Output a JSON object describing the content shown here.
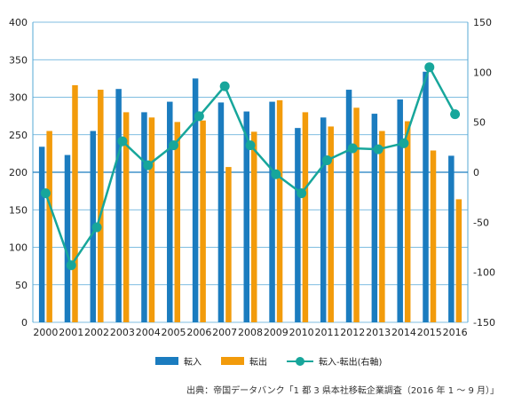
{
  "chart_data": {
    "type": "bar",
    "categories": [
      "2000",
      "2001",
      "2002",
      "2003",
      "2004",
      "2005",
      "2006",
      "2007",
      "2008",
      "2009",
      "2010",
      "2011",
      "2012",
      "2013",
      "2014",
      "2015",
      "2016"
    ],
    "series": [
      {
        "name": "転入",
        "type": "bar",
        "axis": "left",
        "values": [
          234,
          223,
          255,
          311,
          280,
          294,
          325,
          293,
          281,
          294,
          259,
          273,
          310,
          278,
          297,
          334,
          222
        ]
      },
      {
        "name": "転出",
        "type": "bar",
        "axis": "left",
        "values": [
          255,
          316,
          310,
          280,
          273,
          267,
          269,
          207,
          254,
          296,
          280,
          261,
          286,
          255,
          268,
          229,
          164
        ]
      },
      {
        "name": "転入-転出(右軸)",
        "type": "line",
        "axis": "right",
        "values": [
          -21,
          -93,
          -55,
          31,
          7,
          27,
          56,
          86,
          27,
          -2,
          -21,
          12,
          24,
          23,
          29,
          105,
          58
        ]
      }
    ],
    "y_left": {
      "min": 0,
      "max": 400,
      "ticks": [
        0,
        50,
        100,
        150,
        200,
        250,
        300,
        350,
        400
      ]
    },
    "y_right": {
      "min": -150,
      "max": 150,
      "ticks": [
        -150,
        -100,
        -50,
        0,
        50,
        100,
        150
      ]
    },
    "grid": true,
    "legend_position": "bottom-center",
    "source": "出典：帝国データバンク「1 都 3 県本社移転企業調査（2016 年 1 ～ 9 月）」"
  },
  "legend": {
    "inflow_label": "転入",
    "outflow_label": "転出",
    "net_label": "転入-転出(右軸)"
  },
  "colors": {
    "inflow": "#1b7cbf",
    "outflow": "#f29b0b",
    "net": "#17a69b",
    "grid": "#55a8d6",
    "zero_line": "#1b7cbf"
  }
}
